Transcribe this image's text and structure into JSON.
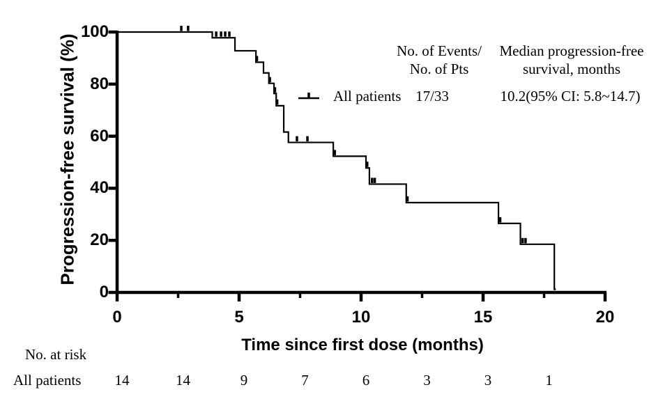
{
  "figure": {
    "yaxis": {
      "title": "Progression-free survival (%)",
      "ticks": [
        "0",
        "20",
        "40",
        "60",
        "80",
        "100"
      ]
    },
    "xaxis": {
      "title": "Time since first dose (months)",
      "ticks": [
        "0",
        "5",
        "10",
        "15",
        "20"
      ]
    },
    "legend": {
      "col1_header_line1": "No. of Events/",
      "col1_header_line2": "No. of Pts",
      "col2_header_line1": "Median progression-free",
      "col2_header_line2": "survival, months",
      "series_label": "All patients",
      "events_pts": "17/33",
      "median": "10.2(95% CI: 5.8~14.7)",
      "marker": "censor-tick-on-line"
    },
    "risk_table": {
      "caption": "No. at risk",
      "row_label": "All patients",
      "values": [
        "14",
        "14",
        "9",
        "7",
        "6",
        "3",
        "3",
        "1"
      ]
    }
  },
  "colors": {
    "line": "#000000",
    "background": "#ffffff",
    "text": "#000000"
  },
  "chart_data": {
    "type": "line",
    "subtype": "kaplan-meier-step",
    "title": "",
    "xlabel": "Time since first dose (months)",
    "ylabel": "Progression-free survival (%)",
    "xlim": [
      0,
      20
    ],
    "ylim": [
      0,
      100
    ],
    "grid": false,
    "legend_position": "upper-right-inside",
    "x_major_ticks": [
      0,
      5,
      10,
      15,
      20
    ],
    "x_minor_ticks": [
      2.5,
      7.5,
      12.5,
      17.5
    ],
    "y_ticks": [
      0,
      20,
      40,
      60,
      80,
      100
    ],
    "series": [
      {
        "name": "All patients",
        "events_over_pts": "17/33",
        "median_pfs_months": "10.2(95% CI: 5.8~14.7)",
        "steps_t_pct": [
          [
            0,
            100
          ],
          [
            3.9,
            97.8
          ],
          [
            4.83,
            92.8
          ],
          [
            5.69,
            88.4
          ],
          [
            6.0,
            84.3
          ],
          [
            6.22,
            80.3
          ],
          [
            6.43,
            76.4
          ],
          [
            6.52,
            71.7
          ],
          [
            6.83,
            61.6
          ],
          [
            7.02,
            57.6
          ],
          [
            8.86,
            52.3
          ],
          [
            10.2,
            47.8
          ],
          [
            10.34,
            41.6
          ],
          [
            11.85,
            34.5
          ],
          [
            15.63,
            26.5
          ],
          [
            16.53,
            18.5
          ],
          [
            17.92,
            1.2
          ]
        ],
        "end_time": 17.98,
        "censor_marks_t_pct": [
          [
            2.63,
            100
          ],
          [
            2.91,
            100
          ],
          [
            4.06,
            97.8
          ],
          [
            4.26,
            97.8
          ],
          [
            4.43,
            97.8
          ],
          [
            4.6,
            97.8
          ],
          [
            5.73,
            88.4
          ],
          [
            6.26,
            80.3
          ],
          [
            6.47,
            76.4
          ],
          [
            6.56,
            71.7
          ],
          [
            7.37,
            57.6
          ],
          [
            7.8,
            57.6
          ],
          [
            8.92,
            52.3
          ],
          [
            10.25,
            47.8
          ],
          [
            10.45,
            41.6
          ],
          [
            10.56,
            41.6
          ],
          [
            11.9,
            34.5
          ],
          [
            15.7,
            26.5
          ],
          [
            16.62,
            18.5
          ],
          [
            16.74,
            18.5
          ]
        ]
      }
    ],
    "risk_table": {
      "label": "All patients",
      "times": [
        0,
        2.5,
        5,
        7.5,
        10,
        12.5,
        15,
        17.5
      ],
      "at_risk": [
        14,
        14,
        9,
        7,
        6,
        3,
        3,
        1
      ]
    }
  }
}
